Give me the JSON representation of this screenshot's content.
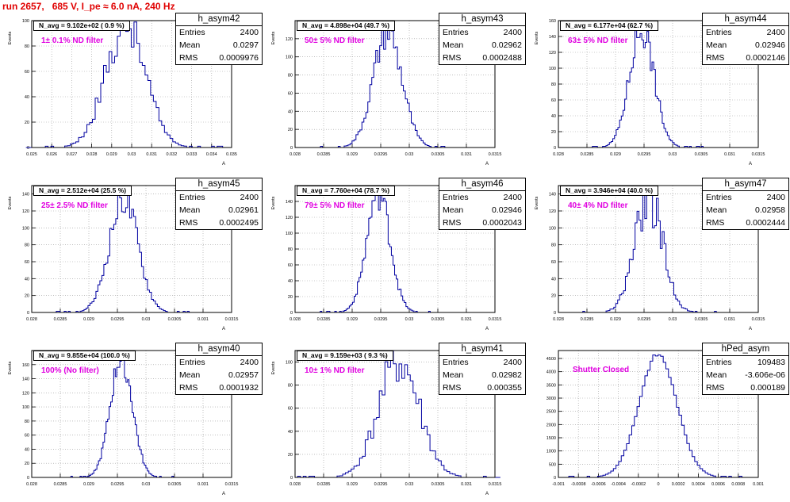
{
  "title": "run 2657,   685 V, I_pe ≈ 6.0 nA, 240 Hz",
  "colors": {
    "title": "#e00000",
    "line": "#0000a0",
    "filter_label": "#e000e0"
  },
  "chart_data": [
    {
      "type": "histogram",
      "name": "h_asym42",
      "n_avg": "N_avg = 9.102e+02 ( 0.9 %)",
      "filter": "1± 0.1% ND filter",
      "entries": "2400",
      "mean": "0.0297",
      "rms": "0.0009976",
      "ylabel": "Events",
      "xlabel": "A",
      "xlim": [
        0.025,
        0.035
      ],
      "ylim": [
        0,
        100
      ],
      "xticks": [
        0.025,
        0.026,
        0.027,
        0.028,
        0.029,
        0.03,
        0.031,
        0.032,
        0.033,
        0.034,
        0.035
      ],
      "xticklabels": [
        "0.025",
        "0.026",
        "0.027",
        "0.028",
        "0.029",
        "0.03",
        "0.031",
        "0.032",
        "0.033",
        "0.034",
        "0.035"
      ],
      "yticks": [
        0,
        20,
        40,
        60,
        80,
        100
      ],
      "mu": 0.0297,
      "sigma": 0.000998,
      "peak": 96,
      "jitter": 0.18,
      "seed": 42
    },
    {
      "type": "histogram",
      "name": "h_asym43",
      "n_avg": "N_avg = 4.898e+04 (49.7 %)",
      "filter": "50± 5% ND filter",
      "entries": "2400",
      "mean": "0.02962",
      "rms": "0.0002488",
      "ylabel": "Events",
      "xlabel": "A",
      "xlim": [
        0.028,
        0.0315
      ],
      "ylim": [
        0,
        140
      ],
      "xticks": [
        0.028,
        0.0285,
        0.029,
        0.0295,
        0.03,
        0.0305,
        0.031,
        0.0315
      ],
      "xticklabels": [
        "0.028",
        "0.0285",
        "0.029",
        "0.0295",
        "0.03",
        "0.0305",
        "0.031",
        "0.0315"
      ],
      "yticks": [
        0,
        20,
        40,
        60,
        80,
        100,
        120
      ],
      "mu": 0.02962,
      "sigma": 0.000249,
      "peak": 128,
      "jitter": 0.15,
      "seed": 43
    },
    {
      "type": "histogram",
      "name": "h_asym44",
      "n_avg": "N_avg = 6.177e+04 (62.7 %)",
      "filter": "63± 5% ND filter",
      "entries": "2400",
      "mean": "0.02946",
      "rms": "0.0002146",
      "ylabel": "Events",
      "xlabel": "A",
      "xlim": [
        0.028,
        0.0315
      ],
      "ylim": [
        0,
        160
      ],
      "xticks": [
        0.028,
        0.0285,
        0.029,
        0.0295,
        0.03,
        0.0305,
        0.031,
        0.0315
      ],
      "xticklabels": [
        "0.028",
        "0.0285",
        "0.029",
        "0.0295",
        "0.03",
        "0.0305",
        "0.031",
        "0.0315"
      ],
      "yticks": [
        0,
        20,
        40,
        60,
        80,
        100,
        120,
        140,
        160
      ],
      "mu": 0.02946,
      "sigma": 0.000215,
      "peak": 150,
      "jitter": 0.15,
      "seed": 44
    },
    {
      "type": "histogram",
      "name": "h_asym45",
      "n_avg": "N_avg = 2.512e+04 (25.5 %)",
      "filter": "25± 2.5% ND filter",
      "entries": "2400",
      "mean": "0.02961",
      "rms": "0.0002495",
      "ylabel": "Events",
      "xlabel": "A",
      "xlim": [
        0.028,
        0.0315
      ],
      "ylim": [
        0,
        150
      ],
      "xticks": [
        0.028,
        0.0285,
        0.029,
        0.0295,
        0.03,
        0.0305,
        0.031,
        0.0315
      ],
      "xticklabels": [
        "0.028",
        "0.0285",
        "0.029",
        "0.0295",
        "0.03",
        "0.0305",
        "0.031",
        "0.0315"
      ],
      "yticks": [
        0,
        20,
        40,
        60,
        80,
        100,
        120,
        140
      ],
      "mu": 0.02961,
      "sigma": 0.00025,
      "peak": 135,
      "jitter": 0.15,
      "seed": 45
    },
    {
      "type": "histogram",
      "name": "h_asym46",
      "n_avg": "N_avg = 7.760e+04 (78.7 %)",
      "filter": "79± 5% ND filter",
      "entries": "2400",
      "mean": "0.02946",
      "rms": "0.0002043",
      "ylabel": "Events",
      "xlabel": "A",
      "xlim": [
        0.028,
        0.0315
      ],
      "ylim": [
        0,
        160
      ],
      "xticks": [
        0.028,
        0.0285,
        0.029,
        0.0295,
        0.03,
        0.0305,
        0.031,
        0.0315
      ],
      "xticklabels": [
        "0.028",
        "0.0285",
        "0.029",
        "0.0295",
        "0.03",
        "0.0305",
        "0.031",
        "0.0315"
      ],
      "yticks": [
        0,
        20,
        40,
        60,
        80,
        100,
        120,
        140
      ],
      "mu": 0.02946,
      "sigma": 0.000204,
      "peak": 152,
      "jitter": 0.15,
      "seed": 46
    },
    {
      "type": "histogram",
      "name": "h_asym47",
      "n_avg": "N_avg = 3.946e+04 (40.0 %)",
      "filter": "40± 4% ND filter",
      "entries": "2400",
      "mean": "0.02958",
      "rms": "0.0002444",
      "ylabel": "Events",
      "xlabel": "A",
      "xlim": [
        0.028,
        0.0315
      ],
      "ylim": [
        0,
        150
      ],
      "xticks": [
        0.028,
        0.0285,
        0.029,
        0.0295,
        0.03,
        0.0305,
        0.031,
        0.0315
      ],
      "xticklabels": [
        "0.028",
        "0.0285",
        "0.029",
        "0.0295",
        "0.03",
        "0.0305",
        "0.031",
        "0.0315"
      ],
      "yticks": [
        0,
        20,
        40,
        60,
        80,
        100,
        120,
        140
      ],
      "mu": 0.02958,
      "sigma": 0.000244,
      "peak": 136,
      "jitter": 0.22,
      "seed": 47
    },
    {
      "type": "histogram",
      "name": "h_asym40",
      "n_avg": "N_avg = 9.855e+04 (100.0 %)",
      "filter": "100% (No filter)",
      "entries": "2400",
      "mean": "0.02957",
      "rms": "0.0001932",
      "ylabel": "Events",
      "xlabel": "A",
      "xlim": [
        0.028,
        0.0315
      ],
      "ylim": [
        0,
        180
      ],
      "xticks": [
        0.028,
        0.0285,
        0.029,
        0.0295,
        0.03,
        0.0305,
        0.031,
        0.0315
      ],
      "xticklabels": [
        "0.028",
        "0.0285",
        "0.029",
        "0.0295",
        "0.03",
        "0.0305",
        "0.031",
        "0.0315"
      ],
      "yticks": [
        0,
        20,
        40,
        60,
        80,
        100,
        120,
        140,
        160
      ],
      "mu": 0.02957,
      "sigma": 0.000193,
      "peak": 170,
      "jitter": 0.12,
      "seed": 40
    },
    {
      "type": "histogram",
      "name": "h_asym41",
      "n_avg": "N_avg = 9.159e+03 ( 9.3 %)",
      "filter": "10± 1% ND filter",
      "entries": "2400",
      "mean": "0.02982",
      "rms": "0.000355",
      "ylabel": "Events",
      "xlabel": "A",
      "xlim": [
        0.028,
        0.0315
      ],
      "ylim": [
        0,
        110
      ],
      "xticks": [
        0.028,
        0.0285,
        0.029,
        0.0295,
        0.03,
        0.0305,
        0.031,
        0.0315
      ],
      "xticklabels": [
        "0.028",
        "0.0285",
        "0.029",
        "0.0295",
        "0.03",
        "0.0305",
        "0.031",
        "0.0315"
      ],
      "yticks": [
        0,
        20,
        40,
        60,
        80,
        100
      ],
      "mu": 0.02982,
      "sigma": 0.000355,
      "peak": 100,
      "jitter": 0.22,
      "seed": 41
    },
    {
      "type": "histogram",
      "name": "hPed_asym",
      "n_avg": "",
      "filter": "Shutter Closed",
      "entries": "109483",
      "mean": "-3.606e-06",
      "rms": "0.000189",
      "ylabel": "",
      "xlabel": "",
      "xlim": [
        -0.001,
        0.001
      ],
      "ylim": [
        0,
        4800
      ],
      "xticks": [
        -0.001,
        -0.0008,
        -0.0006,
        -0.0004,
        -0.0002,
        0,
        0.0002,
        0.0004,
        0.0006,
        0.0008,
        0.001
      ],
      "xticklabels": [
        "-0.001",
        "-0.0008",
        "-0.0006",
        "-0.0004",
        "-0.0002",
        "0",
        "0.0002",
        "0.0004",
        "0.0006",
        "0.0008",
        "0.001"
      ],
      "yticks": [
        0,
        500,
        1000,
        1500,
        2000,
        2500,
        3000,
        3500,
        4000,
        4500
      ],
      "mu": -3.6e-06,
      "sigma": 0.000189,
      "peak": 4650,
      "jitter": 0.02,
      "seed": 9
    }
  ]
}
